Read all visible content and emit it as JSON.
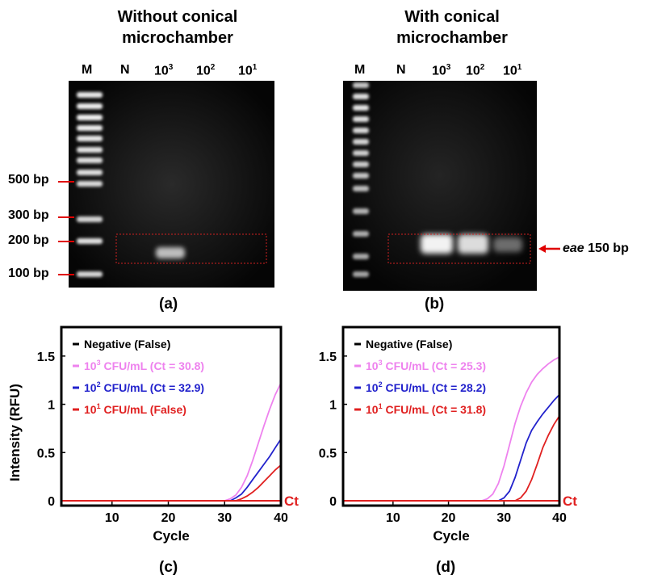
{
  "panel_a": {
    "title_line1": "Without conical",
    "title_line2": "microchamber",
    "label": "(a)",
    "lanes": [
      {
        "base": "M",
        "exp": ""
      },
      {
        "base": "N",
        "exp": ""
      },
      {
        "base": "10",
        "exp": "3"
      },
      {
        "base": "10",
        "exp": "2"
      },
      {
        "base": "10",
        "exp": "1"
      }
    ],
    "bp_markers": [
      "500 bp",
      "300 bp",
      "200 bp",
      "100 bp"
    ]
  },
  "panel_b": {
    "title_line1": "With conical",
    "title_line2": "microchamber",
    "label": "(b)",
    "lanes": [
      {
        "base": "M",
        "exp": ""
      },
      {
        "base": "N",
        "exp": ""
      },
      {
        "base": "10",
        "exp": "3"
      },
      {
        "base": "10",
        "exp": "2"
      },
      {
        "base": "10",
        "exp": "1"
      }
    ],
    "band_annotation_gene": "eae",
    "band_annotation_size": " 150 bp"
  },
  "panel_c": {
    "label": "(c)"
  },
  "panel_d": {
    "label": "(d)"
  },
  "chart_data": [
    {
      "type": "line",
      "panel": "(c)",
      "xlabel": "Cycle",
      "ylabel": "Intensity (RFU)",
      "xlim": [
        1,
        40
      ],
      "ylim": [
        -0.05,
        1.8
      ],
      "xticks": [
        10,
        20,
        30,
        40
      ],
      "yticks": [
        0,
        0.5,
        1,
        1.5
      ],
      "ytick_labels": [
        "0",
        "0.5",
        "1",
        "1.5"
      ],
      "threshold_label": "Ct",
      "threshold_value": 0,
      "legend_position": "top-left",
      "series": [
        {
          "name": "Negative (False)",
          "color": "#000000",
          "x": [
            1,
            10,
            20,
            30,
            40
          ],
          "y": [
            0,
            0,
            0,
            0,
            0
          ]
        },
        {
          "name_base": "10",
          "name_exp": "3",
          "name_rest": " CFU/mL (Ct = 30.8)",
          "color": "#ee82ee",
          "x": [
            1,
            30,
            31,
            32,
            33,
            34,
            35,
            36,
            37,
            38,
            39,
            40
          ],
          "y": [
            0,
            0.0,
            0.02,
            0.06,
            0.14,
            0.26,
            0.42,
            0.6,
            0.78,
            0.95,
            1.1,
            1.22
          ]
        },
        {
          "name_base": "10",
          "name_exp": "2",
          "name_rest": " CFU/mL (Ct = 32.9)",
          "color": "#2222cc",
          "x": [
            1,
            31,
            32,
            33,
            34,
            35,
            36,
            37,
            38,
            39,
            40
          ],
          "y": [
            0,
            0.0,
            0.03,
            0.07,
            0.14,
            0.22,
            0.3,
            0.38,
            0.46,
            0.55,
            0.64
          ]
        },
        {
          "name_base": "10",
          "name_exp": "1",
          "name_rest": " CFU/mL (False)",
          "color": "#e02020",
          "x": [
            1,
            32,
            33,
            34,
            35,
            36,
            37,
            38,
            39,
            40
          ],
          "y": [
            0,
            0.0,
            0.02,
            0.05,
            0.09,
            0.14,
            0.2,
            0.26,
            0.32,
            0.37
          ]
        }
      ]
    },
    {
      "type": "line",
      "panel": "(d)",
      "xlabel": "Cycle",
      "ylabel": "",
      "xlim": [
        1,
        40
      ],
      "ylim": [
        -0.05,
        1.8
      ],
      "xticks": [
        10,
        20,
        30,
        40
      ],
      "yticks": [
        0,
        0.5,
        1,
        1.5
      ],
      "ytick_labels": [
        "0",
        "0.5",
        "1",
        "1.5"
      ],
      "threshold_label": "Ct",
      "threshold_value": 0,
      "legend_position": "top-left",
      "series": [
        {
          "name": "Negative (False)",
          "color": "#000000",
          "x": [
            1,
            10,
            20,
            30,
            40
          ],
          "y": [
            0,
            0,
            0,
            0,
            0
          ]
        },
        {
          "name_base": "10",
          "name_exp": "3",
          "name_rest": " CFU/mL (Ct = 25.3)",
          "color": "#ee82ee",
          "x": [
            1,
            26,
            27,
            28,
            29,
            30,
            31,
            32,
            33,
            34,
            35,
            36,
            37,
            38,
            39,
            40
          ],
          "y": [
            0,
            0.0,
            0.02,
            0.07,
            0.18,
            0.36,
            0.58,
            0.8,
            0.98,
            1.12,
            1.23,
            1.31,
            1.37,
            1.42,
            1.46,
            1.49
          ]
        },
        {
          "name_base": "10",
          "name_exp": "2",
          "name_rest": " CFU/mL (Ct = 28.2)",
          "color": "#2222cc",
          "x": [
            1,
            29,
            30,
            31,
            32,
            33,
            34,
            35,
            36,
            37,
            38,
            39,
            40
          ],
          "y": [
            0,
            0.0,
            0.03,
            0.1,
            0.24,
            0.42,
            0.6,
            0.73,
            0.82,
            0.9,
            0.97,
            1.04,
            1.1
          ]
        },
        {
          "name_base": "10",
          "name_exp": "1",
          "name_rest": " CFU/mL (Ct = 31.8)",
          "color": "#e02020",
          "x": [
            1,
            32,
            33,
            34,
            35,
            36,
            37,
            38,
            39,
            40
          ],
          "y": [
            0,
            0.0,
            0.03,
            0.1,
            0.22,
            0.38,
            0.55,
            0.68,
            0.79,
            0.88
          ]
        }
      ]
    }
  ]
}
